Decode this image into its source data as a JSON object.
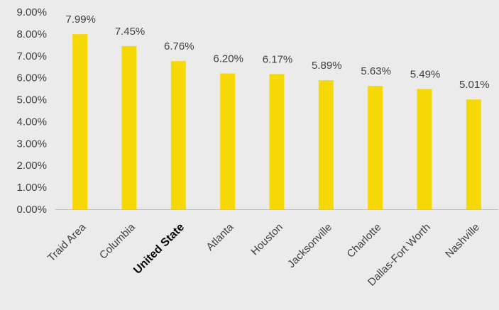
{
  "chart_data": {
    "type": "bar",
    "title": "",
    "xlabel": "",
    "ylabel": "",
    "categories": [
      "Traid Area",
      "Columbia",
      "United State",
      "Atlanta",
      "Houston",
      "Jacksonville",
      "Charlotte",
      "Dallas-Fort Worth",
      "Nashville"
    ],
    "values": [
      7.99,
      7.45,
      6.76,
      6.2,
      6.17,
      5.89,
      5.63,
      5.49,
      5.01
    ],
    "data_labels": [
      "7.99%",
      "7.45%",
      "6.76%",
      "6.20%",
      "6.17%",
      "5.89%",
      "5.63%",
      "5.49%",
      "5.01%"
    ],
    "y_ticks": [
      "0.00%",
      "1.00%",
      "2.00%",
      "3.00%",
      "4.00%",
      "5.00%",
      "6.00%",
      "7.00%",
      "8.00%",
      "9.00%"
    ],
    "ylim": [
      0,
      9
    ],
    "grid": false,
    "legend": "none",
    "bar_color": "#f7d807",
    "axis_color": "#bfbfbf",
    "background": "#ebebeb",
    "highlighted_category": "United State"
  }
}
